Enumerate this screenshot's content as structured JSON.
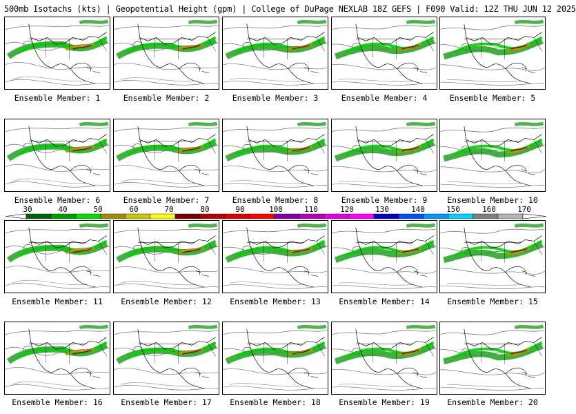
{
  "header": {
    "title": "500mb Isotachs (kts) | Geopotential Height (gpm) | College of DuPage NEXLAB   18Z GEFS | F090 Valid: 12Z THU JUN 12 2025"
  },
  "members": [
    "Ensemble Member: 1",
    "Ensemble Member: 2",
    "Ensemble Member: 3",
    "Ensemble Member: 4",
    "Ensemble Member: 5",
    "Ensemble Member: 6",
    "Ensemble Member: 7",
    "Ensemble Member: 8",
    "Ensemble Member: 9",
    "Ensemble Member: 10",
    "Ensemble Member: 11",
    "Ensemble Member: 12",
    "Ensemble Member: 13",
    "Ensemble Member: 14",
    "Ensemble Member: 15",
    "Ensemble Member: 16",
    "Ensemble Member: 17",
    "Ensemble Member: 18",
    "Ensemble Member: 19",
    "Ensemble Member: 20"
  ],
  "colorbar": {
    "ticks": [
      "30",
      "40",
      "50",
      "60",
      "70",
      "80",
      "90",
      "100",
      "110",
      "120",
      "130",
      "140",
      "150",
      "160",
      "170"
    ],
    "colors": [
      "#006400",
      "#00a000",
      "#00e000",
      "#a08c00",
      "#c8c800",
      "#ffff00",
      "#7a0000",
      "#b40000",
      "#e00000",
      "#ff0000",
      "#8000a0",
      "#b400b4",
      "#e000e0",
      "#ff00ff",
      "#0000c8",
      "#0050ff",
      "#0096ff",
      "#00d2ff",
      "#808080",
      "#b4b4b4"
    ]
  }
}
